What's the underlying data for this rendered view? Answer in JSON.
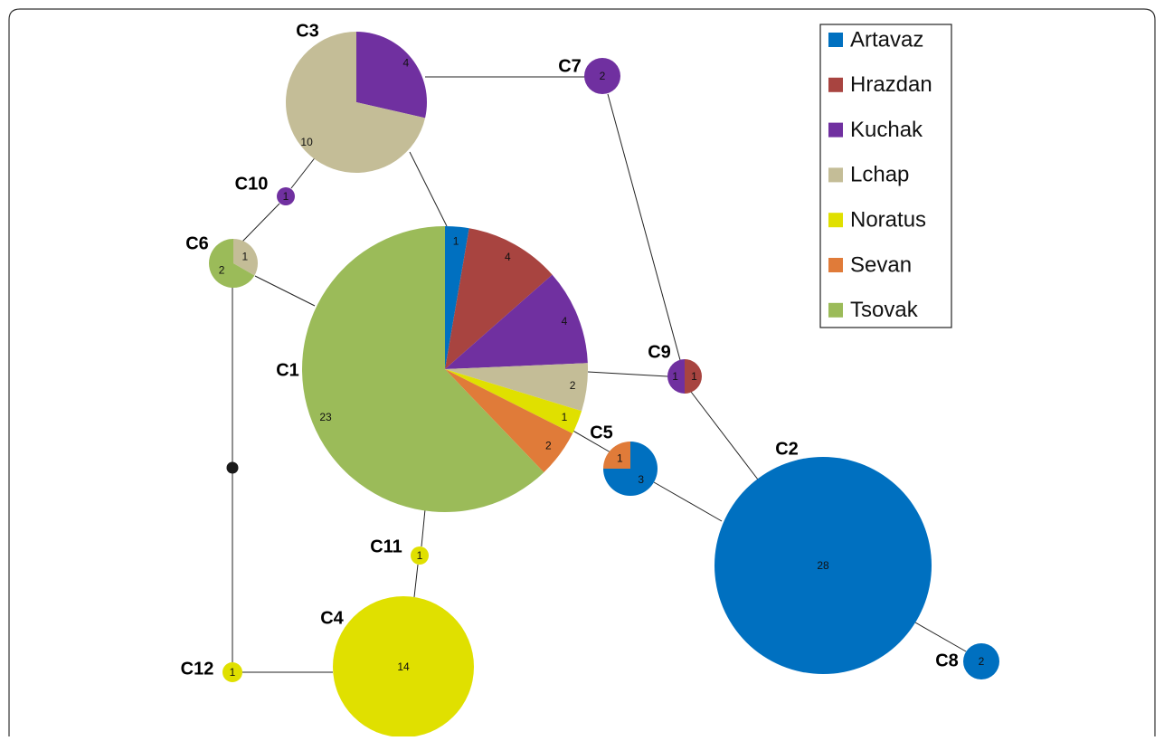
{
  "legend": [
    {
      "name": "Artavaz",
      "color": "#0070c0"
    },
    {
      "name": "Hrazdan",
      "color": "#a84440"
    },
    {
      "name": "Kuchak",
      "color": "#7030a0"
    },
    {
      "name": "Lchap",
      "color": "#c4bd97"
    },
    {
      "name": "Noratus",
      "color": "#e0e000"
    },
    {
      "name": "Sevan",
      "color": "#e07b39"
    },
    {
      "name": "Tsovak",
      "color": "#9bbb59"
    }
  ],
  "nodes": [
    {
      "label": "C1",
      "segments": [
        {
          "group": "Artavaz",
          "count": 1
        },
        {
          "group": "Hrazdan",
          "count": 4
        },
        {
          "group": "Kuchak",
          "count": 4
        },
        {
          "group": "Lchap",
          "count": 2
        },
        {
          "group": "Noratus",
          "count": 1
        },
        {
          "group": "Sevan",
          "count": 2
        },
        {
          "group": "Tsovak",
          "count": 23
        }
      ]
    },
    {
      "label": "C2",
      "segments": [
        {
          "group": "Artavaz",
          "count": 28
        }
      ]
    },
    {
      "label": "C3",
      "segments": [
        {
          "group": "Kuchak",
          "count": 4
        },
        {
          "group": "Lchap",
          "count": 10
        }
      ]
    },
    {
      "label": "C4",
      "segments": [
        {
          "group": "Noratus",
          "count": 14
        }
      ]
    },
    {
      "label": "C5",
      "segments": [
        {
          "group": "Artavaz",
          "count": 3
        },
        {
          "group": "Sevan",
          "count": 1
        }
      ]
    },
    {
      "label": "C6",
      "segments": [
        {
          "group": "Lchap",
          "count": 1
        },
        {
          "group": "Tsovak",
          "count": 2
        }
      ]
    },
    {
      "label": "C7",
      "segments": [
        {
          "group": "Kuchak",
          "count": 2
        }
      ]
    },
    {
      "label": "C8",
      "segments": [
        {
          "group": "Artavaz",
          "count": 2
        }
      ]
    },
    {
      "label": "C9",
      "segments": [
        {
          "group": "Hrazdan",
          "count": 1
        },
        {
          "group": "Kuchak",
          "count": 1
        }
      ]
    },
    {
      "label": "C10",
      "segments": [
        {
          "group": "Kuchak",
          "count": 1
        }
      ]
    },
    {
      "label": "C11",
      "segments": [
        {
          "group": "Noratus",
          "count": 1
        }
      ]
    },
    {
      "label": "C12",
      "segments": [
        {
          "group": "Noratus",
          "count": 1
        }
      ]
    }
  ]
}
